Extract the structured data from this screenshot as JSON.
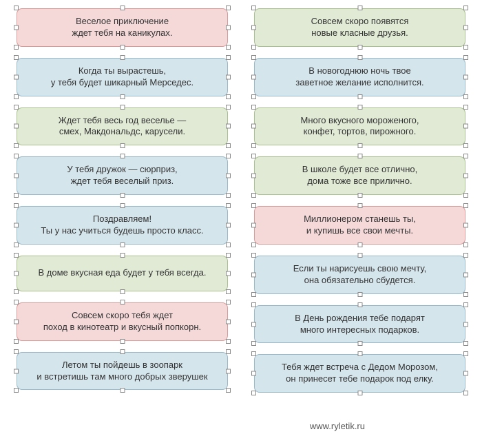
{
  "colors": {
    "pink": {
      "bg": "#f5d9d9",
      "border": "#d99a9a"
    },
    "blue": {
      "bg": "#d5e5ec",
      "border": "#99b8c8"
    },
    "green": {
      "bg": "#e0ead5",
      "border": "#aac090"
    }
  },
  "left": [
    {
      "key": "pink",
      "line1": "Веселое приключение",
      "line2": "ждет тебя на каникулах."
    },
    {
      "key": "blue",
      "line1": "Когда ты вырастешь,",
      "line2": "у тебя будет шикарный Мерседес."
    },
    {
      "key": "green",
      "line1": "Ждет тебя весь год веселье —",
      "line2": "смех, Макдональдс, карусели."
    },
    {
      "key": "blue",
      "line1": "У тебя дружок — сюрприз,",
      "line2": "ждет тебя веселый приз."
    },
    {
      "key": "blue",
      "line1": "Поздравляем!",
      "line2": "Ты у нас учиться будешь просто класс."
    },
    {
      "key": "green",
      "line1": "В доме вкусная еда будет у тебя всегда.",
      "line2": ""
    },
    {
      "key": "pink",
      "line1": "Совсем скоро тебя ждет",
      "line2": "поход в кинотеатр и вкусный попкорн."
    },
    {
      "key": "blue",
      "line1": "Летом ты пойдешь в зоопарк",
      "line2": "и встретишь там много добрых зверушек"
    }
  ],
  "right": [
    {
      "key": "green",
      "line1": "Совсем скоро появятся",
      "line2": "новые класные друзья."
    },
    {
      "key": "blue",
      "line1": "В новогоднюю ночь твое",
      "line2": "заветное желание исполнится."
    },
    {
      "key": "green",
      "line1": "Много вкусного мороженого,",
      "line2": "конфет, тортов, пирожного."
    },
    {
      "key": "green",
      "line1": "В школе будет все отлично,",
      "line2": "дома тоже все прилично."
    },
    {
      "key": "pink",
      "line1": "Миллионером станешь ты,",
      "line2": "и купишь все свои мечты."
    },
    {
      "key": "blue",
      "line1": "Если ты нарисуешь свою мечту,",
      "line2": "она обязательно сбудется."
    },
    {
      "key": "blue",
      "line1": "В День рождения тебе подарят",
      "line2": "много интересных подарков."
    },
    {
      "key": "blue",
      "line1": "Тебя ждет встреча с Дедом Морозом,",
      "line2": "он принесет тебе подарок под елку."
    }
  ],
  "footer": "www.ryletik.ru"
}
